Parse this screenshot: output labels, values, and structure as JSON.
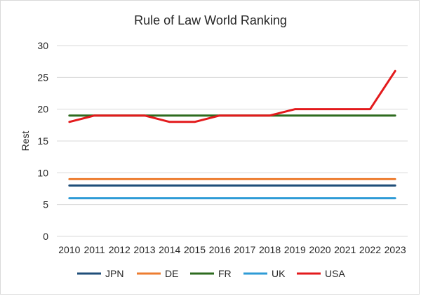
{
  "chart_data": {
    "type": "line",
    "title": "Rule of Law World Ranking",
    "xlabel": "",
    "ylabel": "Rest",
    "ylim": [
      0,
      30
    ],
    "yticks": [
      0,
      5,
      10,
      15,
      20,
      25,
      30
    ],
    "grid": "horizontal",
    "legend_position": "bottom",
    "categories": [
      "2010",
      "2011",
      "2012",
      "2013",
      "2014",
      "2015",
      "2016",
      "2017",
      "2018",
      "2019",
      "2020",
      "2021",
      "2022",
      "2023"
    ],
    "series": [
      {
        "name": "JPN",
        "color": "#1f4e79",
        "values": [
          8,
          8,
          8,
          8,
          8,
          8,
          8,
          8,
          8,
          8,
          8,
          8,
          8,
          8
        ]
      },
      {
        "name": "DE",
        "color": "#ed7d31",
        "values": [
          9,
          9,
          9,
          9,
          9,
          9,
          9,
          9,
          9,
          9,
          9,
          9,
          9,
          9
        ]
      },
      {
        "name": "FR",
        "color": "#2e6b1f",
        "values": [
          19,
          19,
          19,
          19,
          19,
          19,
          19,
          19,
          19,
          19,
          19,
          19,
          19,
          19
        ]
      },
      {
        "name": "UK",
        "color": "#2e9bd6",
        "values": [
          6,
          6,
          6,
          6,
          6,
          6,
          6,
          6,
          6,
          6,
          6,
          6,
          6,
          6
        ]
      },
      {
        "name": "USA",
        "color": "#e31a1c",
        "values": [
          18,
          19,
          19,
          19,
          18,
          18,
          19,
          19,
          19,
          20,
          20,
          20,
          20,
          26
        ]
      }
    ]
  }
}
